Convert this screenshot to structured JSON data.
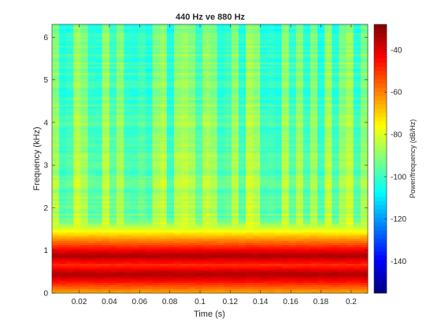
{
  "chart_data": {
    "type": "heatmap",
    "title": "440 Hz ve 880 Hz",
    "xlabel": "Time (s)",
    "ylabel": "Frequency (kHz)",
    "colorbar_label": "Power/frequency (dB/Hz)",
    "colormap": "jet",
    "xlim": [
      0.002,
      0.211
    ],
    "ylim": [
      0,
      6.3
    ],
    "clim": [
      -155,
      -28
    ],
    "xticks": [
      0.02,
      0.04,
      0.06,
      0.08,
      0.1,
      0.12,
      0.14,
      0.16,
      0.18,
      0.2
    ],
    "xtick_labels": [
      "0.02",
      "0.04",
      "0.06",
      "0.08",
      "0.1",
      "0.12",
      "0.14",
      "0.16",
      "0.18",
      "0.2"
    ],
    "yticks": [
      0,
      1,
      2,
      3,
      4,
      5,
      6
    ],
    "ytick_labels": [
      "0",
      "1",
      "2",
      "3",
      "4",
      "5",
      "6"
    ],
    "cbar_ticks": [
      -140,
      -120,
      -100,
      -80,
      -60,
      -40
    ],
    "cbar_tick_labels": [
      "-140",
      "-120",
      "-100",
      "-80",
      "-60",
      "-40"
    ],
    "time_bins": 44,
    "freq_bins": 128,
    "tones_khz": [
      0.44,
      0.88
    ],
    "tone_level_db": -33,
    "background_level_db": {
      "low_freq": -78,
      "high_freq": -92
    },
    "low_power_time_frames": [
      0.009,
      0.014,
      0.028,
      0.034,
      0.043,
      0.052,
      0.057,
      0.062,
      0.067,
      0.081,
      0.1,
      0.114,
      0.119,
      0.128,
      0.142,
      0.147,
      0.152,
      0.161,
      0.171,
      0.18,
      0.19,
      0.204
    ],
    "high_power_time_frames": [
      0.019,
      0.038,
      0.076,
      0.09,
      0.105,
      0.133,
      0.157,
      0.185,
      0.199
    ]
  }
}
